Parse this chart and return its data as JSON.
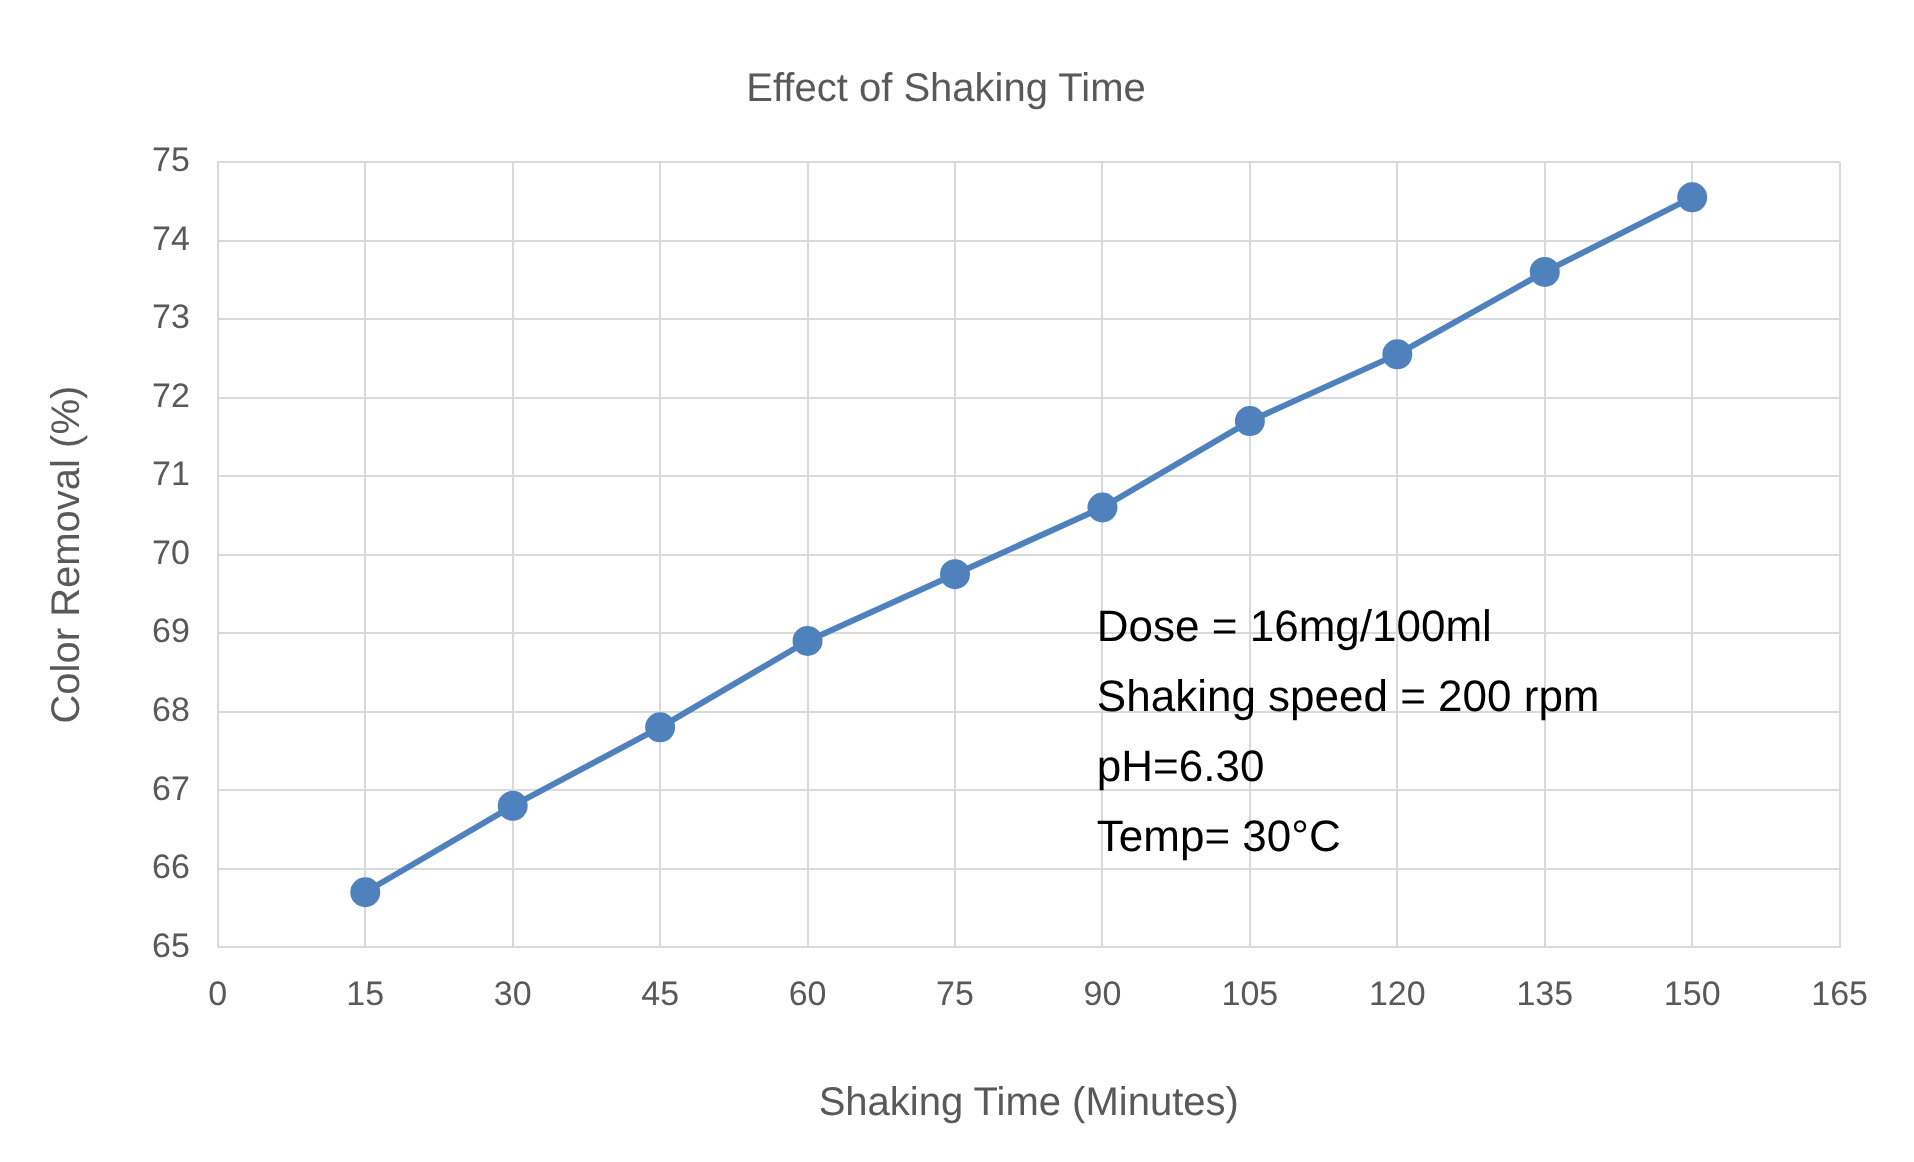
{
  "chart_data": {
    "type": "line",
    "title": "Effect of Shaking Time",
    "xlabel": "Shaking Time (Minutes)",
    "ylabel": "Color Removal (%)",
    "x": [
      15,
      30,
      45,
      60,
      75,
      90,
      105,
      120,
      135,
      150
    ],
    "series": [
      {
        "color": "#4f81bd",
        "values": [
          65.7,
          66.8,
          67.8,
          68.9,
          69.75,
          70.6,
          71.7,
          72.55,
          73.6,
          74.55
        ]
      }
    ],
    "xlim": [
      0,
      165
    ],
    "xticks": [
      0,
      15,
      30,
      45,
      60,
      75,
      90,
      105,
      120,
      135,
      150,
      165
    ],
    "ylim": [
      65,
      75
    ],
    "yticks": [
      65,
      66,
      67,
      68,
      69,
      70,
      71,
      72,
      73,
      74,
      75
    ],
    "grid": true,
    "legend": false,
    "marker": "circle",
    "line_style": "solid",
    "annotations": [
      "Dose = 16mg/100ml",
      "Shaking speed = 200 rpm",
      "pH=6.30",
      "Temp= 30°C"
    ]
  }
}
